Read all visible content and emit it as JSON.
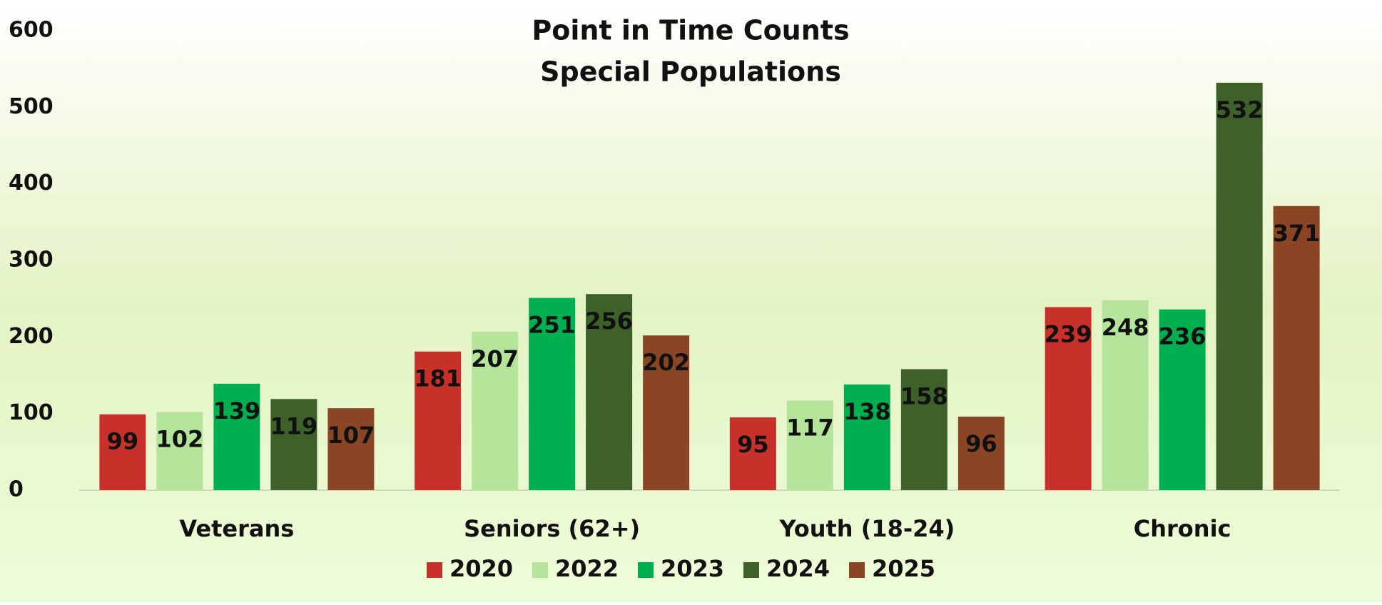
{
  "chart_data": {
    "type": "bar",
    "title": "Point in Time Counts",
    "subtitle": "Special Populations",
    "categories": [
      "Veterans",
      "Seniors (62+)",
      "Youth (18-24)",
      "Chronic"
    ],
    "series": [
      {
        "name": "2020",
        "color": "#c8312a",
        "values": [
          99,
          181,
          95,
          239
        ]
      },
      {
        "name": "2022",
        "color": "#b5e59a",
        "values": [
          102,
          207,
          117,
          248
        ]
      },
      {
        "name": "2023",
        "color": "#00b050",
        "values": [
          139,
          251,
          138,
          236
        ]
      },
      {
        "name": "2024",
        "color": "#3d6128",
        "values": [
          119,
          256,
          158,
          532
        ]
      },
      {
        "name": "2025",
        "color": "#8a4524",
        "values": [
          107,
          202,
          96,
          371
        ]
      }
    ],
    "ylim": [
      0,
      600
    ],
    "yticks": [
      0,
      100,
      200,
      300,
      400,
      500,
      600
    ],
    "legend": "bottom"
  }
}
